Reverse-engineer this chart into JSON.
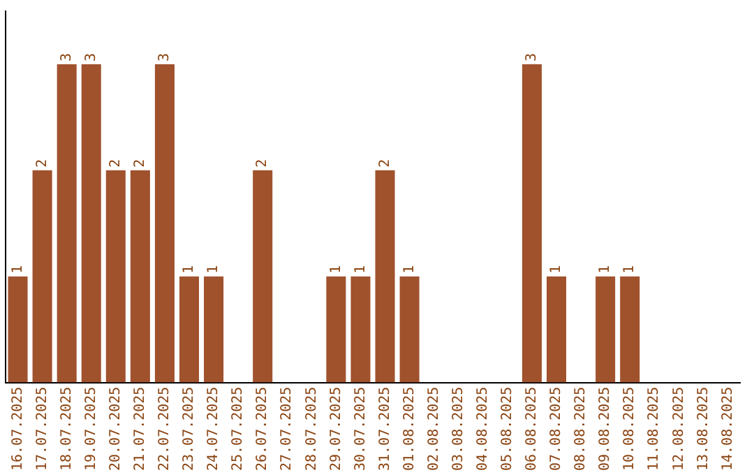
{
  "chart_data": {
    "type": "bar",
    "categories": [
      "16.07.2025",
      "17.07.2025",
      "18.07.2025",
      "19.07.2025",
      "20.07.2025",
      "21.07.2025",
      "22.07.2025",
      "23.07.2025",
      "24.07.2025",
      "25.07.2025",
      "26.07.2025",
      "27.07.2025",
      "28.07.2025",
      "29.07.2025",
      "30.07.2025",
      "31.07.2025",
      "01.08.2025",
      "02.08.2025",
      "03.08.2025",
      "04.08.2025",
      "05.08.2025",
      "06.08.2025",
      "07.08.2025",
      "08.08.2025",
      "09.08.2025",
      "10.08.2025",
      "11.08.2025",
      "12.08.2025",
      "13.08.2025",
      "14.08.2025"
    ],
    "values": [
      1,
      2,
      3,
      3,
      2,
      2,
      3,
      1,
      1,
      0,
      2,
      0,
      0,
      1,
      1,
      2,
      1,
      0,
      0,
      0,
      0,
      3,
      1,
      0,
      1,
      1,
      0,
      0,
      0,
      0
    ],
    "value_labels": [
      "1",
      "2",
      "3",
      "3",
      "2",
      "2",
      "3",
      "1",
      "1",
      null,
      "2",
      null,
      null,
      "1",
      "1",
      "2",
      "1",
      null,
      null,
      null,
      null,
      "3",
      "1",
      null,
      "1",
      "1",
      null,
      null,
      null,
      null
    ],
    "color": "#a0522d",
    "tick_labels": "x"
  }
}
